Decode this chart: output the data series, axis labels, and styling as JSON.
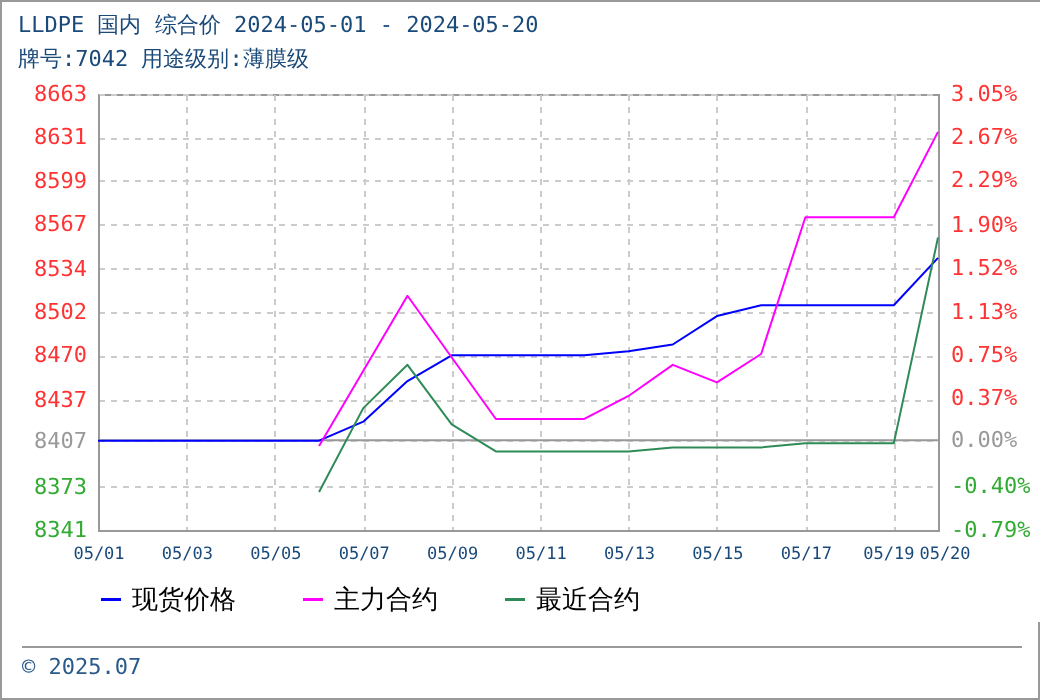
{
  "chart_data": {
    "type": "line",
    "title": "LLDPE 国内 综合价 2024-05-01 - 2024-05-20",
    "subtitle": "牌号:7042 用途级别:薄膜级",
    "series": [
      {
        "name": "现货价格",
        "color": "#0000ff",
        "x": [
          "2024-05-01",
          "2024-05-02",
          "2024-05-03",
          "2024-05-04",
          "2024-05-05",
          "2024-05-06",
          "2024-05-07",
          "2024-05-08",
          "2024-05-09",
          "2024-05-10",
          "2024-05-11",
          "2024-05-12",
          "2024-05-13",
          "2024-05-14",
          "2024-05-15",
          "2024-05-16",
          "2024-05-17",
          "2024-05-18",
          "2024-05-19",
          "2024-05-20"
        ],
        "values": [
          8407,
          8407,
          8407,
          8407,
          8407,
          8407,
          8421,
          8451,
          8470,
          8470,
          8470,
          8470,
          8473,
          8478,
          8499,
          8507,
          8507,
          8507,
          8507,
          8542
        ]
      },
      {
        "name": "主力合约",
        "color": "#ff00ff",
        "x": [
          "2024-05-06",
          "2024-05-08",
          "2024-05-10",
          "2024-05-11",
          "2024-05-12",
          "2024-05-13",
          "2024-05-14",
          "2024-05-15",
          "2024-05-16",
          "2024-05-17",
          "2024-05-18",
          "2024-05-19",
          "2024-05-20"
        ],
        "values": [
          8403,
          8514,
          8423,
          8423,
          8423,
          8440,
          8463,
          8450,
          8471,
          8572,
          8572,
          8572,
          8635
        ]
      },
      {
        "name": "最近合约",
        "color": "#2e8b57",
        "x": [
          "2024-05-06",
          "2024-05-07",
          "2024-05-08",
          "2024-05-09",
          "2024-05-10",
          "2024-05-13",
          "2024-05-14",
          "2024-05-16",
          "2024-05-17",
          "2024-05-19",
          "2024-05-20"
        ],
        "values": [
          8369,
          8431,
          8463,
          8419,
          8399,
          8399,
          8402,
          8402,
          8405,
          8405,
          8557
        ]
      }
    ],
    "xlim": [
      "2024-05-01",
      "2024-05-20"
    ],
    "xticks": [
      {
        "value": "2024-05-01",
        "label": "05/01"
      },
      {
        "value": "2024-05-03",
        "label": "05/03"
      },
      {
        "value": "2024-05-05",
        "label": "05/05"
      },
      {
        "value": "2024-05-07",
        "label": "05/07"
      },
      {
        "value": "2024-05-09",
        "label": "05/09"
      },
      {
        "value": "2024-05-11",
        "label": "05/11"
      },
      {
        "value": "2024-05-13",
        "label": "05/13"
      },
      {
        "value": "2024-05-15",
        "label": "05/15"
      },
      {
        "value": "2024-05-17",
        "label": "05/17"
      },
      {
        "value": "2024-05-19",
        "label": "05/19"
      },
      {
        "value": "2024-05-20",
        "label": "05/20"
      }
    ],
    "ylim": [
      8341,
      8663
    ],
    "yticks": [
      8341,
      8373,
      8407,
      8437,
      8470,
      8502,
      8534,
      8567,
      8599,
      8631,
      8663
    ],
    "y2lim": [
      -0.79,
      3.05
    ],
    "y2ticks": [
      {
        "value": -0.79,
        "label": "-0.79%"
      },
      {
        "value": -0.4,
        "label": "-0.40%"
      },
      {
        "value": 0,
        "label": "0.00%"
      },
      {
        "value": 0.37,
        "label": "0.37%"
      },
      {
        "value": 0.75,
        "label": "0.75%"
      },
      {
        "value": 1.13,
        "label": "1.13%"
      },
      {
        "value": 1.52,
        "label": "1.52%"
      },
      {
        "value": 1.9,
        "label": "1.90%"
      },
      {
        "value": 2.29,
        "label": "2.29%"
      },
      {
        "value": 2.67,
        "label": "2.67%"
      },
      {
        "value": 3.05,
        "label": "3.05%"
      }
    ],
    "ref_lines": [
      {
        "axis": "y2",
        "value": 0,
        "color": "#999999"
      }
    ],
    "grid": true,
    "legend": "bottom",
    "line_style": "solid",
    "annotations": [
      "© 2025.07"
    ]
  }
}
